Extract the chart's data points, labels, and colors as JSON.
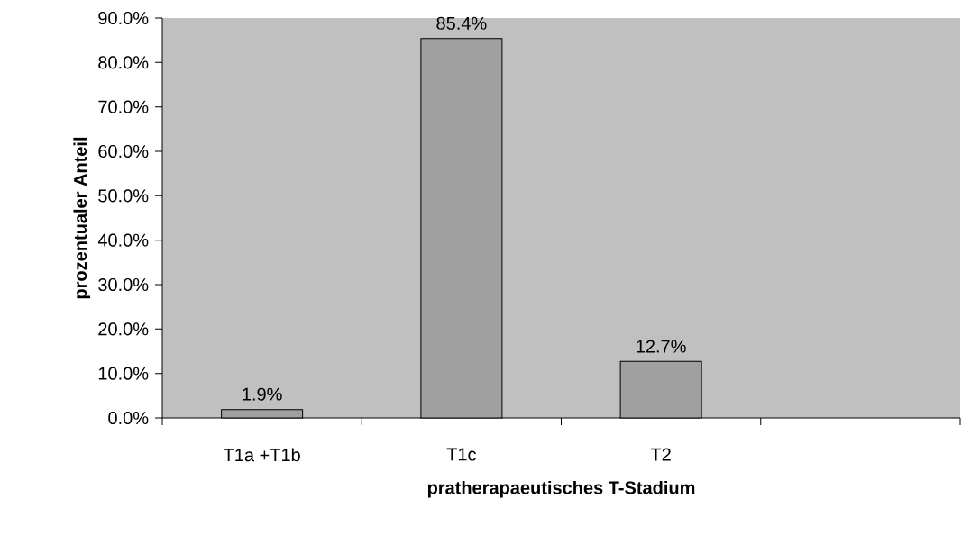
{
  "chart_data": {
    "type": "bar",
    "xlabel": "pratherapaeutisches T-Stadium",
    "ylabel": "prozentualer Anteil",
    "categories": [
      "T1a +T1b",
      "T1c",
      "T2",
      null
    ],
    "values": [
      1.9,
      85.4,
      12.7,
      null
    ],
    "value_labels": [
      "1.9%",
      "85.4%",
      "12.7%",
      null
    ],
    "color": "#a0a0a0",
    "ylim": [
      0,
      90
    ],
    "yticks": [
      {
        "value": 0,
        "label": "0.0%"
      },
      {
        "value": 10,
        "label": "10.0%"
      },
      {
        "value": 20,
        "label": "20.0%"
      },
      {
        "value": 30,
        "label": "30.0%"
      },
      {
        "value": 40,
        "label": "40.0%"
      },
      {
        "value": 50,
        "label": "50.0%"
      },
      {
        "value": 60,
        "label": "60.0%"
      },
      {
        "value": 70,
        "label": "70.0%"
      },
      {
        "value": 80,
        "label": "80.0%"
      },
      {
        "value": 90,
        "label": "90.0%"
      }
    ]
  }
}
